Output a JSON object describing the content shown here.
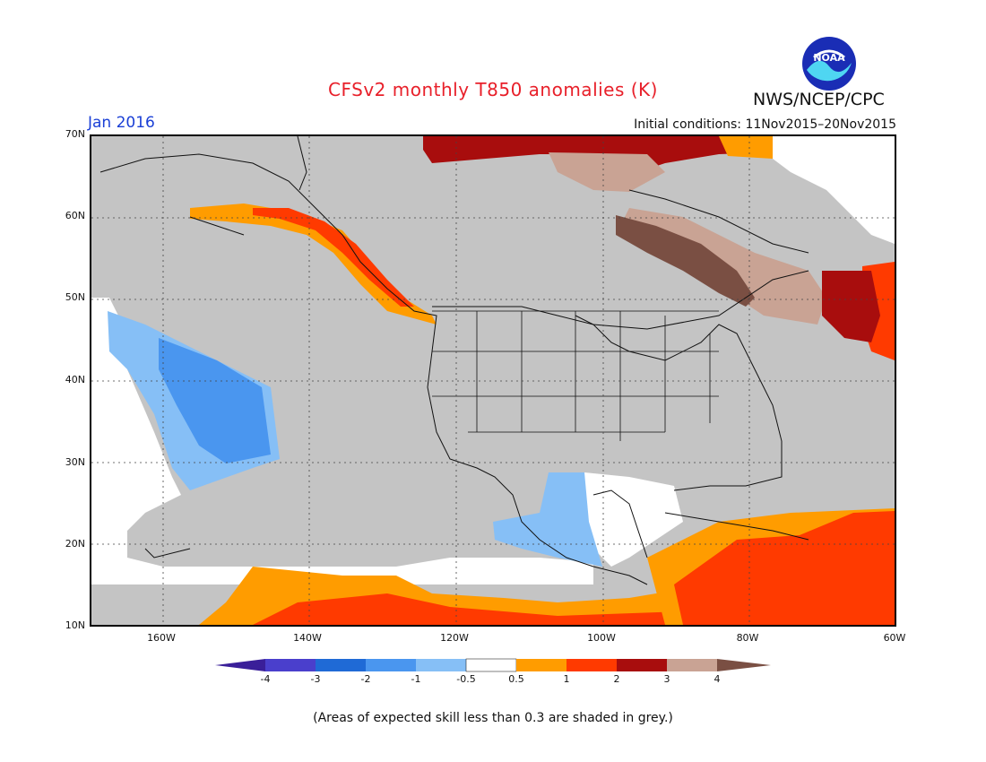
{
  "header": {
    "title": "CFSv2 monthly T850 anomalies (K)",
    "agency": "NWS/NCEP/CPC",
    "month": "Jan 2016",
    "initial_conditions": "Initial conditions: 11Nov2015–20Nov2015",
    "logo_text": "NOAA"
  },
  "map": {
    "lat_labels": [
      "70N",
      "60N",
      "50N",
      "40N",
      "30N",
      "20N",
      "10N"
    ],
    "lon_labels": [
      "160W",
      "140W",
      "120W",
      "100W",
      "80W",
      "60W"
    ],
    "lat_range": [
      10,
      70
    ],
    "lon_range": [
      -170,
      -60
    ],
    "grid": true
  },
  "legend": {
    "units": "K",
    "tick_labels": [
      "-4",
      "-3",
      "-2",
      "-1",
      "-0.5",
      "0.5",
      "1",
      "2",
      "3",
      "4"
    ],
    "colors": {
      "lt_-4": "#3a1f99",
      "-4_-3": "#4a3fcc",
      "-3_-2": "#1f6ad6",
      "-2_-1": "#4a96ef",
      "-1_-0.5": "#86bff6",
      "-0.5_0.5": "#ffffff",
      "0.5_1": "#ff9c00",
      "1_2": "#ff3a00",
      "2_3": "#a80d0d",
      "3_4": "#c9a394",
      "gt_4": "#7a4f43"
    },
    "skill_mask_color": "#c4c4c4"
  },
  "footnote": "(Areas of expected skill less than 0.3 are shaded in grey.)"
}
